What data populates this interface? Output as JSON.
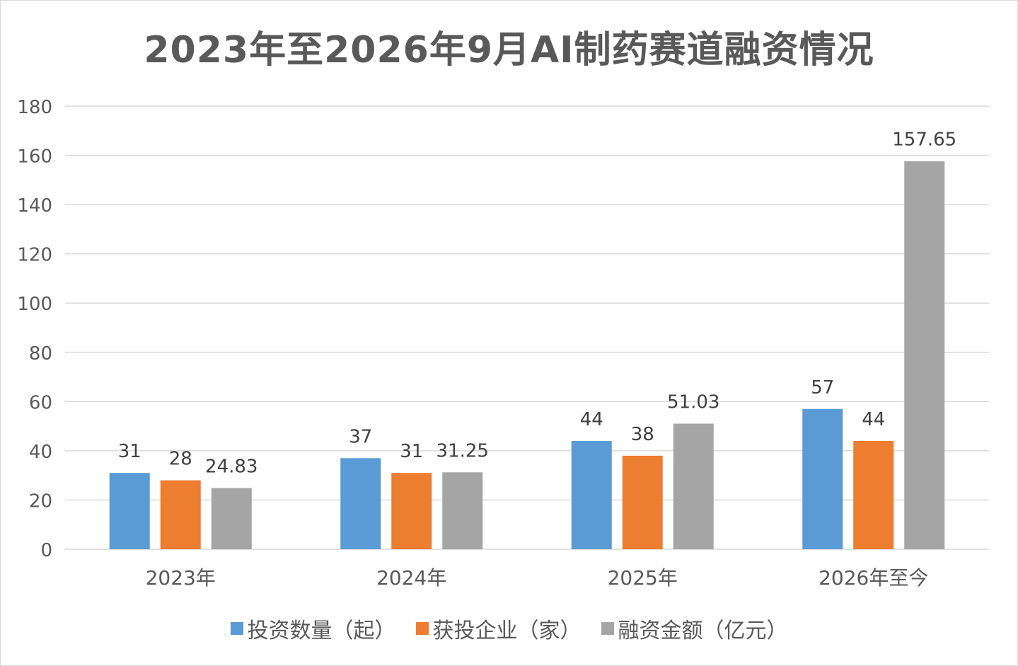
{
  "chart_data": {
    "type": "bar",
    "title": "2023年至2026年9月AI制药赛道融资情况",
    "categories": [
      "2023年",
      "2024年",
      "2025年",
      "2026年至今"
    ],
    "series": [
      {
        "name": "投资数量（起）",
        "values": [
          31,
          37,
          44,
          57
        ],
        "color": "#5b9bd5"
      },
      {
        "name": "获投企业（家）",
        "values": [
          28,
          31,
          38,
          44
        ],
        "color": "#ed7d31"
      },
      {
        "name": "融资金额（亿元）",
        "values": [
          24.83,
          31.25,
          51.03,
          157.65
        ],
        "color": "#a5a5a5"
      }
    ],
    "data_labels": [
      [
        "31",
        "37",
        "44",
        "57"
      ],
      [
        "28",
        "31",
        "38",
        "44"
      ],
      [
        "24.83",
        "31.25",
        "51.03",
        "157.65"
      ]
    ],
    "ylim": [
      0,
      180
    ],
    "yticks": [
      0,
      20,
      40,
      60,
      80,
      100,
      120,
      140,
      160,
      180
    ],
    "grid": true,
    "legend": "bottom"
  }
}
